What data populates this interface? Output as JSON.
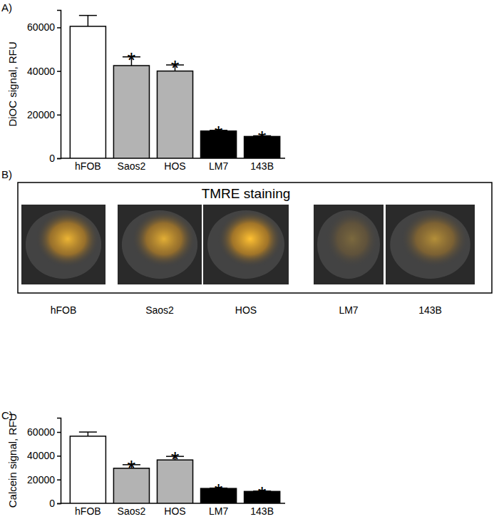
{
  "chart_data": [
    {
      "type": "bar",
      "title": "A)",
      "y_label": "DiOC signal, RFU",
      "categories": [
        "hFOB",
        "Saos2",
        "HOS",
        "LM7",
        "143B"
      ],
      "values": [
        60500,
        42500,
        40000,
        12500,
        10000
      ],
      "errors": [
        5000,
        4000,
        2800,
        300,
        300
      ],
      "colors": [
        "#ffffff",
        "#b3b3b3",
        "#b3b3b3",
        "#000000",
        "#000000"
      ],
      "ylim": [
        0,
        68000
      ],
      "yticks": [
        0,
        20000,
        40000,
        60000
      ],
      "annotations": [
        {
          "x": "Saos2",
          "text": "*"
        },
        {
          "x": "HOS",
          "text": "*"
        },
        {
          "x": "LM7",
          "text": "*"
        },
        {
          "x": "143B",
          "text": "*"
        }
      ]
    },
    {
      "type": "bar",
      "title": "C)",
      "y_label": "Calcein signal, RFU",
      "categories": [
        "hFOB",
        "Saos2",
        "HOS",
        "LM7",
        "143B"
      ],
      "values": [
        56500,
        29500,
        36500,
        12500,
        10000
      ],
      "errors": [
        3500,
        3000,
        3000,
        300,
        300
      ],
      "colors": [
        "#ffffff",
        "#b3b3b3",
        "#b3b3b3",
        "#000000",
        "#000000"
      ],
      "ylim": [
        0,
        72000
      ],
      "yticks": [
        0,
        20000,
        40000,
        60000
      ],
      "annotations": [
        {
          "x": "Saos2",
          "text": "*"
        },
        {
          "x": "HOS",
          "text": "*"
        },
        {
          "x": "LM7",
          "text": "*"
        },
        {
          "x": "143B",
          "text": "*"
        }
      ]
    }
  ],
  "images_panel": {
    "label": "B)",
    "title": "TMRE staining",
    "images": [
      "hFOB",
      "Saos2",
      "HOS",
      "LM7",
      "143B"
    ]
  }
}
